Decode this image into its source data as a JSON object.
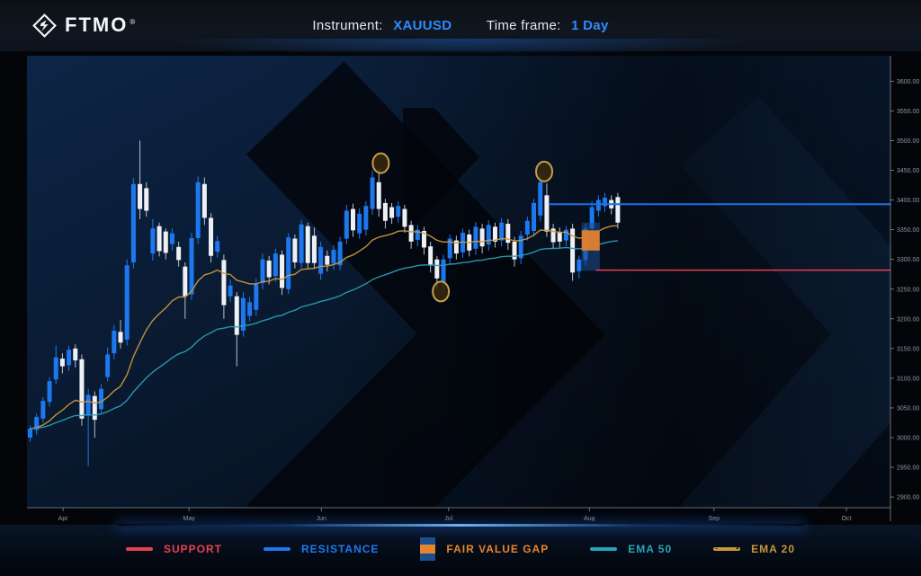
{
  "header": {
    "logo_text": "FTMO",
    "registered_mark": "®",
    "instrument_label": "Instrument:",
    "instrument_value": "XAUUSD",
    "timeframe_label": "Time frame:",
    "timeframe_value": "1 Day"
  },
  "colors": {
    "up_candle": "#1d78f0",
    "down_candle": "#edf1f6",
    "down_wick": "#b7c0ca",
    "support": "#e8414f",
    "resistance": "#1d6fe8",
    "fvg_orange": "#e8822c",
    "fvg_blue_zone": "#1c4e8f",
    "ema20": "#c8983f",
    "ema50": "#2a9cb5",
    "marker_ring": "#c69e4a",
    "axis_text": "#8d97a6",
    "axis_line": "#b9c3d1",
    "accent_blue": "#2e8bff"
  },
  "chart_data": {
    "type": "candlestick",
    "symbol": "XAUUSD",
    "timeframe": "1 Day",
    "ylim": [
      2882,
      3643
    ],
    "y_ticks": [
      3600,
      3550,
      3500,
      3450,
      3400,
      3350,
      3300,
      3250,
      3200,
      3150,
      3100,
      3050,
      3000,
      2950,
      2900
    ],
    "x_ticks": [
      {
        "label": "Apr",
        "index": 5.1
      },
      {
        "label": "May",
        "index": 24.6
      },
      {
        "label": "Jun",
        "index": 45.1
      },
      {
        "label": "Jul",
        "index": 64.8
      },
      {
        "label": "Aug",
        "index": 86.6
      },
      {
        "label": "Sep",
        "index": 105.9
      },
      {
        "label": "Oct",
        "index": 126.4
      }
    ],
    "candles": [
      [
        3000,
        3020,
        2993,
        3015
      ],
      [
        3013,
        3040,
        3005,
        3035
      ],
      [
        3032,
        3068,
        3025,
        3062
      ],
      [
        3060,
        3102,
        3052,
        3095
      ],
      [
        3098,
        3155,
        3090,
        3135
      ],
      [
        3133,
        3142,
        3108,
        3120
      ],
      [
        3122,
        3155,
        3112,
        3148
      ],
      [
        3150,
        3157,
        3118,
        3130
      ],
      [
        3132,
        3140,
        3020,
        3032
      ],
      [
        3037,
        3082,
        2952,
        3072
      ],
      [
        3070,
        3078,
        3000,
        3030
      ],
      [
        3048,
        3090,
        3040,
        3082
      ],
      [
        3102,
        3152,
        3095,
        3140
      ],
      [
        3142,
        3190,
        3132,
        3180
      ],
      [
        3178,
        3198,
        3150,
        3160
      ],
      [
        3165,
        3300,
        3155,
        3290
      ],
      [
        3295,
        3437,
        3285,
        3427
      ],
      [
        3427,
        3500,
        3368,
        3385
      ],
      [
        3420,
        3430,
        3372,
        3382
      ],
      [
        3310,
        3368,
        3298,
        3352
      ],
      [
        3356,
        3362,
        3305,
        3314
      ],
      [
        3347,
        3352,
        3300,
        3311
      ],
      [
        3326,
        3352,
        3315,
        3344
      ],
      [
        3321,
        3330,
        3288,
        3299
      ],
      [
        3288,
        3295,
        3200,
        3238
      ],
      [
        3241,
        3345,
        3232,
        3336
      ],
      [
        3336,
        3440,
        3326,
        3430
      ],
      [
        3427,
        3438,
        3358,
        3370
      ],
      [
        3370,
        3378,
        3295,
        3306
      ],
      [
        3313,
        3340,
        3303,
        3331
      ],
      [
        3299,
        3308,
        3200,
        3223
      ],
      [
        3238,
        3266,
        3228,
        3256
      ],
      [
        3238,
        3245,
        3120,
        3173
      ],
      [
        3180,
        3245,
        3170,
        3235
      ],
      [
        3205,
        3237,
        3196,
        3228
      ],
      [
        3215,
        3268,
        3205,
        3258
      ],
      [
        3260,
        3310,
        3250,
        3300
      ],
      [
        3298,
        3306,
        3258,
        3270
      ],
      [
        3272,
        3318,
        3262,
        3310
      ],
      [
        3308,
        3315,
        3240,
        3252
      ],
      [
        3250,
        3344,
        3242,
        3337
      ],
      [
        3335,
        3342,
        3285,
        3295
      ],
      [
        3294,
        3367,
        3285,
        3359
      ],
      [
        3356,
        3362,
        3284,
        3294
      ],
      [
        3340,
        3354,
        3284,
        3294
      ],
      [
        3276,
        3330,
        3266,
        3321
      ],
      [
        3306,
        3315,
        3280,
        3291
      ],
      [
        3293,
        3324,
        3283,
        3316
      ],
      [
        3290,
        3338,
        3282,
        3330
      ],
      [
        3335,
        3392,
        3326,
        3382
      ],
      [
        3385,
        3394,
        3338,
        3349
      ],
      [
        3344,
        3386,
        3335,
        3377
      ],
      [
        3350,
        3398,
        3340,
        3390
      ],
      [
        3385,
        3450,
        3375,
        3438
      ],
      [
        3430,
        3452,
        3372,
        3385
      ],
      [
        3395,
        3402,
        3352,
        3365
      ],
      [
        3388,
        3395,
        3360,
        3370
      ],
      [
        3372,
        3398,
        3362,
        3390
      ],
      [
        3385,
        3392,
        3345,
        3355
      ],
      [
        3358,
        3365,
        3318,
        3330
      ],
      [
        3333,
        3358,
        3322,
        3350
      ],
      [
        3348,
        3355,
        3308,
        3320
      ],
      [
        3322,
        3330,
        3278,
        3290
      ],
      [
        3300,
        3306,
        3252,
        3268
      ],
      [
        3262,
        3308,
        3250,
        3300
      ],
      [
        3302,
        3342,
        3292,
        3335
      ],
      [
        3332,
        3340,
        3300,
        3310
      ],
      [
        3312,
        3352,
        3303,
        3345
      ],
      [
        3342,
        3350,
        3305,
        3315
      ],
      [
        3318,
        3363,
        3308,
        3355
      ],
      [
        3352,
        3360,
        3310,
        3322
      ],
      [
        3325,
        3366,
        3315,
        3358
      ],
      [
        3355,
        3362,
        3320,
        3330
      ],
      [
        3332,
        3370,
        3322,
        3362
      ],
      [
        3360,
        3368,
        3316,
        3328
      ],
      [
        3330,
        3338,
        3288,
        3300
      ],
      [
        3302,
        3348,
        3292,
        3340
      ],
      [
        3342,
        3372,
        3332,
        3365
      ],
      [
        3348,
        3402,
        3338,
        3395
      ],
      [
        3374,
        3444,
        3364,
        3430
      ],
      [
        3408,
        3428,
        3338,
        3347
      ],
      [
        3352,
        3360,
        3318,
        3329
      ],
      [
        3346,
        3354,
        3320,
        3330
      ],
      [
        3332,
        3356,
        3322,
        3350
      ],
      [
        3352,
        3360,
        3264,
        3278
      ],
      [
        3280,
        3306,
        3268,
        3300
      ],
      [
        3299,
        3360,
        3290,
        3352
      ],
      [
        3352,
        3398,
        3342,
        3388
      ],
      [
        3382,
        3408,
        3372,
        3400
      ],
      [
        3390,
        3412,
        3380,
        3404
      ],
      [
        3400,
        3408,
        3376,
        3386
      ],
      [
        3405,
        3412,
        3352,
        3362
      ]
    ],
    "resistance": {
      "label": "RESISTANCE",
      "price": 3393,
      "from_index": 80.3
    },
    "support": {
      "label": "SUPPORT",
      "price": 3282,
      "from_index": 87.6
    },
    "fair_value_gap": {
      "label": "FAIR VALUE GAP",
      "from_index": 85.4,
      "to_index": 88.2,
      "zone_high": 3362,
      "zone_low": 3281,
      "gap_high": 3349,
      "gap_low": 3315
    },
    "markers": [
      {
        "index": 54.3,
        "price": 3462,
        "position": "swing-high"
      },
      {
        "index": 79.6,
        "price": 3448,
        "position": "swing-high"
      },
      {
        "index": 63.6,
        "price": 3246,
        "position": "swing-low"
      }
    ],
    "emas": [
      {
        "name": "EMA 20",
        "period": 20
      },
      {
        "name": "EMA 50",
        "period": 50
      }
    ],
    "grid": false,
    "legend_position": "bottom"
  },
  "legend": {
    "items": [
      {
        "id": "support",
        "label": "SUPPORT",
        "color": "#e8414f",
        "swatch": "line"
      },
      {
        "id": "resistance",
        "label": "RESISTANCE",
        "color": "#1d78f0",
        "swatch": "line"
      },
      {
        "id": "fvg",
        "label": "FAIR VALUE GAP",
        "color": "#e8842d",
        "swatch": "fvg",
        "secondary": "#1d4e8f"
      },
      {
        "id": "ema50",
        "label": "EMA 50",
        "color": "#29a3ba",
        "swatch": "line"
      },
      {
        "id": "ema20",
        "label": "EMA 20",
        "color": "#c9973b",
        "swatch": "dashed-line"
      }
    ]
  }
}
